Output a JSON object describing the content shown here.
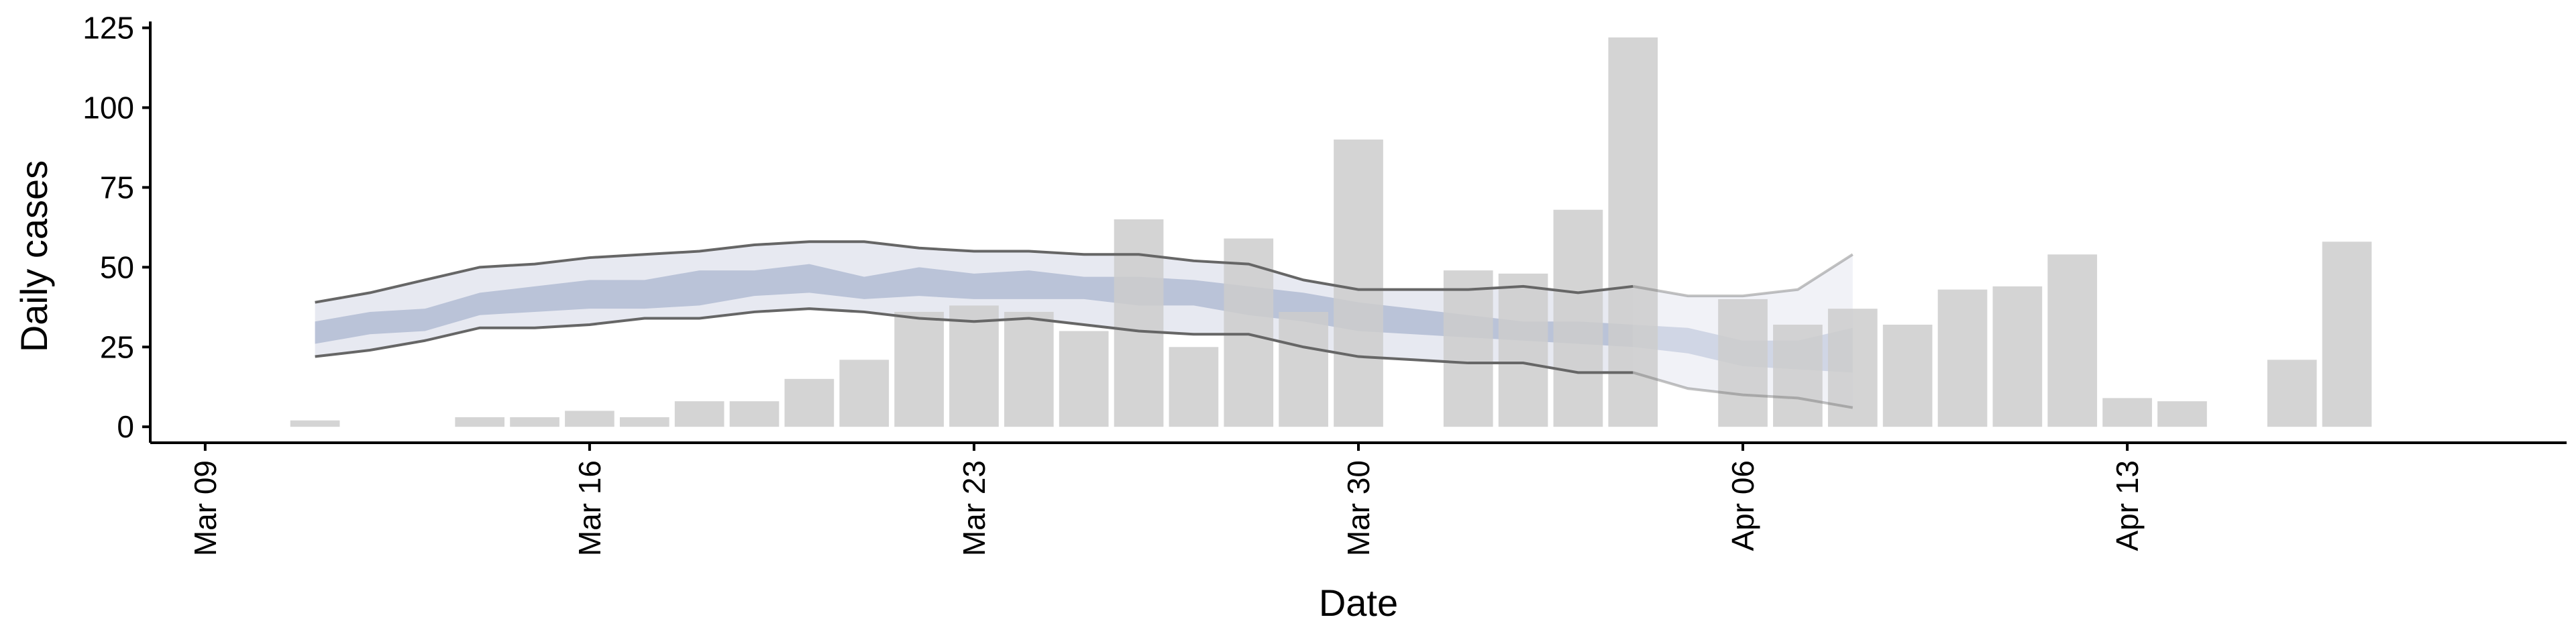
{
  "chart_data": {
    "type": "bar",
    "xlabel": "Date",
    "ylabel": "Daily cases",
    "ylim": [
      -5,
      127
    ],
    "xlim": [
      "2020-03-08",
      "2020-04-21"
    ],
    "yticks": [
      0,
      25,
      50,
      75,
      100,
      125
    ],
    "xticks": [
      {
        "date": "2020-03-09",
        "label": "Mar 09"
      },
      {
        "date": "2020-03-16",
        "label": "Mar 16"
      },
      {
        "date": "2020-03-23",
        "label": "Mar 23"
      },
      {
        "date": "2020-03-30",
        "label": "Mar 30"
      },
      {
        "date": "2020-04-06",
        "label": "Apr 06"
      },
      {
        "date": "2020-04-13",
        "label": "Apr 13"
      }
    ],
    "grid": false,
    "bars": {
      "color": "#cccccc",
      "dates": [
        "2020-03-11",
        "2020-03-12",
        "2020-03-13",
        "2020-03-14",
        "2020-03-15",
        "2020-03-16",
        "2020-03-17",
        "2020-03-18",
        "2020-03-19",
        "2020-03-20",
        "2020-03-21",
        "2020-03-22",
        "2020-03-23",
        "2020-03-24",
        "2020-03-25",
        "2020-03-26",
        "2020-03-27",
        "2020-03-28",
        "2020-03-29",
        "2020-03-30",
        "2020-03-31",
        "2020-04-01",
        "2020-04-02",
        "2020-04-03",
        "2020-04-04",
        "2020-04-05",
        "2020-04-06",
        "2020-04-07",
        "2020-04-08",
        "2020-04-09",
        "2020-04-10",
        "2020-04-11",
        "2020-04-12",
        "2020-04-13",
        "2020-04-14",
        "2020-04-15",
        "2020-04-16",
        "2020-04-17"
      ],
      "values": [
        2,
        0,
        0,
        3,
        3,
        5,
        3,
        8,
        8,
        15,
        21,
        36,
        38,
        36,
        30,
        65,
        25,
        59,
        36,
        90,
        0,
        49,
        48,
        68,
        122,
        0,
        40,
        32,
        37,
        32,
        43,
        44,
        54,
        9,
        8,
        0,
        21,
        58
      ]
    },
    "band": {
      "dates": [
        "2020-03-11",
        "2020-03-12",
        "2020-03-13",
        "2020-03-14",
        "2020-03-15",
        "2020-03-16",
        "2020-03-17",
        "2020-03-18",
        "2020-03-19",
        "2020-03-20",
        "2020-03-21",
        "2020-03-22",
        "2020-03-23",
        "2020-03-24",
        "2020-03-25",
        "2020-03-26",
        "2020-03-27",
        "2020-03-28",
        "2020-03-29",
        "2020-03-30",
        "2020-03-31",
        "2020-04-01",
        "2020-04-02",
        "2020-04-03",
        "2020-04-04",
        "2020-04-05",
        "2020-04-06",
        "2020-04-07",
        "2020-04-08"
      ],
      "lower90": [
        22,
        24,
        27,
        31,
        31,
        32,
        34,
        34,
        36,
        37,
        36,
        34,
        33,
        34,
        32,
        30,
        29,
        29,
        25,
        22,
        21,
        20,
        20,
        17,
        17,
        12,
        10,
        9,
        6
      ],
      "upper90": [
        39,
        42,
        46,
        50,
        51,
        53,
        54,
        55,
        57,
        58,
        58,
        56,
        55,
        55,
        54,
        54,
        52,
        51,
        46,
        43,
        43,
        43,
        44,
        42,
        44,
        41,
        41,
        43,
        54
      ],
      "lower50": [
        26,
        29,
        30,
        35,
        36,
        37,
        37,
        38,
        41,
        42,
        40,
        41,
        40,
        40,
        40,
        38,
        38,
        35,
        33,
        30,
        29,
        28,
        27,
        26,
        25,
        23,
        19,
        18,
        17
      ],
      "upper50": [
        33,
        36,
        37,
        42,
        44,
        46,
        46,
        49,
        49,
        51,
        47,
        50,
        48,
        49,
        47,
        47,
        46,
        44,
        42,
        39,
        37,
        35,
        33,
        33,
        32,
        31,
        27,
        27,
        31
      ],
      "observed_until": "2020-04-04",
      "color_outer": "#e7e9f1",
      "color_inner": "#bac3d8",
      "color_line": "#666666"
    }
  }
}
